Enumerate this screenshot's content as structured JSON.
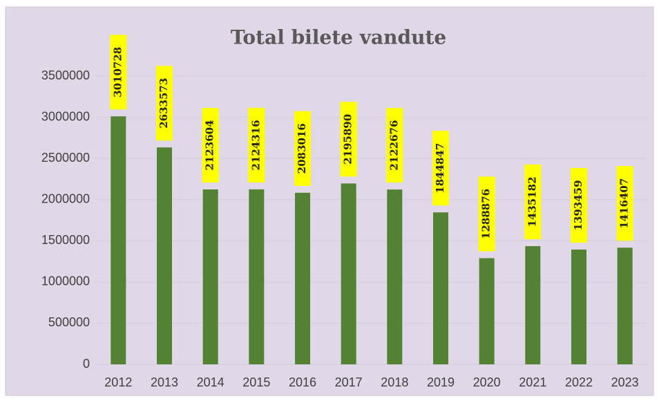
{
  "chart_data": {
    "type": "bar",
    "title": "Total bilete vandute",
    "categories": [
      "2012",
      "2013",
      "2014",
      "2015",
      "2016",
      "2017",
      "2018",
      "2019",
      "2020",
      "2021",
      "2022",
      "2023"
    ],
    "values": [
      3010728,
      2633573,
      2123604,
      2124316,
      2083016,
      2195890,
      2122676,
      1844847,
      1288876,
      1435182,
      1393459,
      1416407
    ],
    "color": "#548235",
    "label_color": "#ffff00",
    "ylim": [
      0,
      3500000
    ],
    "yticks": [
      0,
      500000,
      1000000,
      1500000,
      2000000,
      2500000,
      3000000,
      3500000
    ],
    "grid": true
  }
}
